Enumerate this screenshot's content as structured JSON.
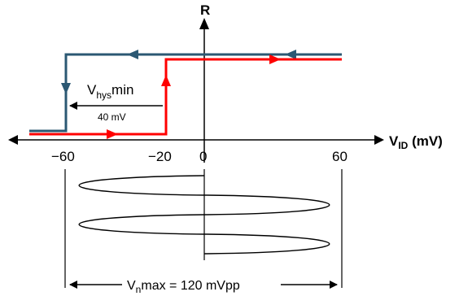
{
  "axes": {
    "y_label": "R",
    "x_label_main": "V",
    "x_label_sub": "ID",
    "x_label_unit": " (mV)",
    "ticks": [
      "−60",
      "−20",
      "0",
      "60"
    ]
  },
  "hysteresis": {
    "label_main": "V",
    "label_sub": "hys",
    "label_suffix": "min",
    "value": "40 mV"
  },
  "noise": {
    "label_main": "V",
    "label_sub": "n",
    "label_rest": "max = 120 mVpp"
  },
  "colors": {
    "falling_trace": "#2b5873",
    "rising_trace": "#ff0000",
    "axes": "#000000"
  }
}
